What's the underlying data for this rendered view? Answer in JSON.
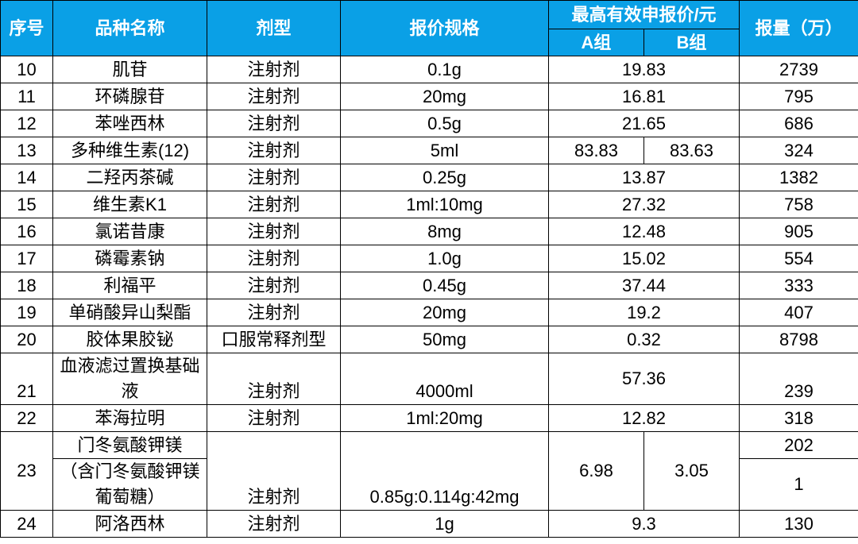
{
  "header": {
    "columns": [
      "序号",
      "品种名称",
      "剂型",
      "报价规格",
      "最高有效申报价/元",
      "报量（万）"
    ],
    "subcolumns": [
      "A组",
      "B组"
    ]
  },
  "table": {
    "rows": [
      {
        "no": "10",
        "name": "肌苷",
        "form": "注射剂",
        "spec": "0.1g",
        "price": "19.83",
        "qty": "2739"
      },
      {
        "no": "11",
        "name": "环磷腺苷",
        "form": "注射剂",
        "spec": "20mg",
        "price": "16.81",
        "qty": "795"
      },
      {
        "no": "12",
        "name": "苯唑西林",
        "form": "注射剂",
        "spec": "0.5g",
        "price": "21.65",
        "qty": "686"
      },
      {
        "no": "13",
        "name": "多种维生素(12)",
        "form": "注射剂",
        "spec": "5ml",
        "price": [
          "83.83",
          "83.63"
        ],
        "qty": "324"
      },
      {
        "no": "14",
        "name": "二羟丙茶碱",
        "form": "注射剂",
        "spec": "0.25g",
        "price": "13.87",
        "qty": "1382"
      },
      {
        "no": "15",
        "name": "维生素K1",
        "form": "注射剂",
        "spec": "1ml:10mg",
        "price": "27.32",
        "qty": "758"
      },
      {
        "no": "16",
        "name": "氯诺昔康",
        "form": "注射剂",
        "spec": "8mg",
        "price": "12.48",
        "qty": "905"
      },
      {
        "no": "17",
        "name": "磷霉素钠",
        "form": "注射剂",
        "spec": "1.0g",
        "price": "15.02",
        "qty": "554"
      },
      {
        "no": "18",
        "name": "利福平",
        "form": "注射剂",
        "spec": "0.45g",
        "price": "37.44",
        "qty": "333"
      },
      {
        "no": "19",
        "name": "单硝酸异山梨酯",
        "form": "注射剂",
        "spec": "20mg",
        "price": "19.2",
        "qty": "407"
      },
      {
        "no": "20",
        "name": "胶体果胶铋",
        "form": "口服常释剂型",
        "spec": "50mg",
        "price": "0.32",
        "qty": "8798"
      },
      {
        "no": "21",
        "name": "血液滤过置换基础液",
        "form": "注射剂",
        "spec": "4000ml",
        "price": "57.36",
        "qty": "239"
      },
      {
        "no": "22",
        "name": "苯海拉明",
        "form": "注射剂",
        "spec": "1ml:20mg",
        "price": "12.82",
        "qty": "318"
      },
      {
        "no": "23",
        "name": [
          "门冬氨酸钾镁",
          "（含门冬氨酸钾镁葡萄糖）"
        ],
        "form": "注射剂",
        "spec": "0.85g:0.114g:42mg",
        "price": [
          "6.98",
          "3.05"
        ],
        "qty": [
          "202",
          "1"
        ]
      },
      {
        "no": "24",
        "name": "阿洛西林",
        "form": "注射剂",
        "spec": "1g",
        "price": "9.3",
        "qty": "130"
      }
    ]
  }
}
